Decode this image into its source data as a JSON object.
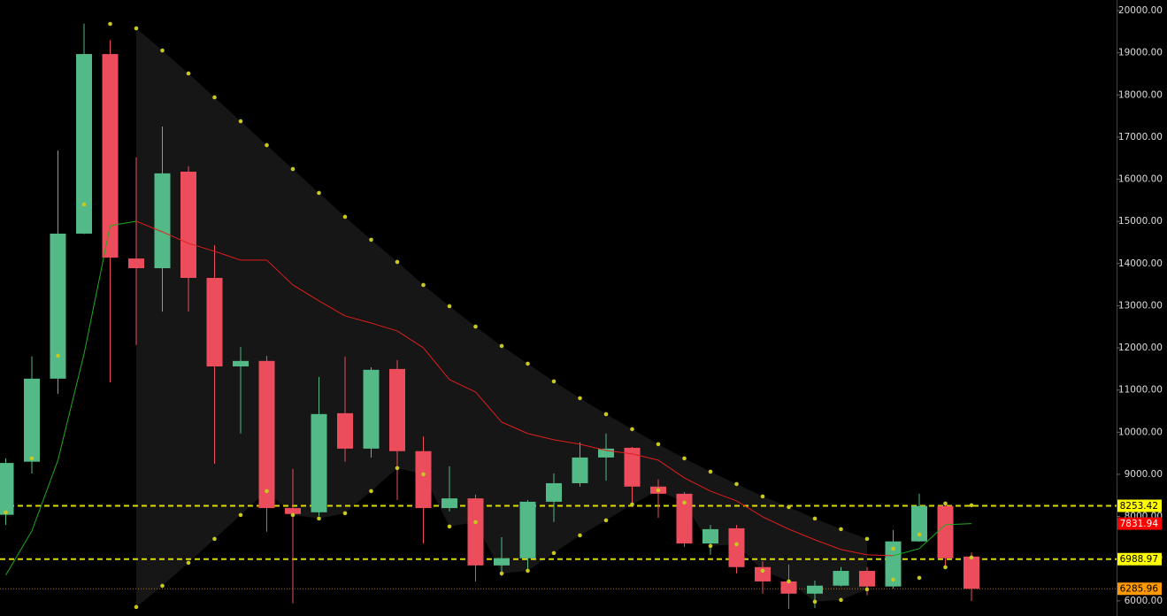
{
  "chart_data": {
    "type": "candlestick",
    "up_color": "#53b987",
    "down_color": "#eb4d5c",
    "open": [
      8040,
      9300,
      11270,
      14710,
      18970,
      14120,
      13890,
      16180,
      13660,
      11560,
      11690,
      8200,
      8100,
      10450,
      9610,
      11500,
      9550,
      8200,
      8430,
      6840,
      7010,
      8350,
      8790,
      9400,
      9630,
      8710,
      8540,
      7360,
      7720,
      6800,
      6460,
      6170,
      6360,
      6710,
      6340,
      7410,
      8250,
      7050
    ],
    "high": [
      9380,
      11800,
      16680,
      19690,
      19300,
      16520,
      17250,
      16310,
      14440,
      12020,
      11810,
      9130,
      11310,
      11790,
      11540,
      11710,
      9900,
      9190,
      8520,
      7510,
      8390,
      9020,
      9760,
      9970,
      9650,
      8880,
      8580,
      7800,
      7800,
      6940,
      6860,
      6480,
      6800,
      6800,
      7680,
      8540,
      8350,
      7150
    ],
    "low": [
      7800,
      9020,
      10910,
      14700,
      11180,
      12070,
      12860,
      12860,
      9250,
      9970,
      7640,
      5940,
      8010,
      9300,
      9400,
      8390,
      7360,
      8120,
      6460,
      6590,
      6690,
      7870,
      8710,
      8850,
      8220,
      7970,
      7280,
      7090,
      6650,
      6170,
      5810,
      5830,
      6340,
      6130,
      6290,
      7400,
      6820,
      6000
    ],
    "close": [
      9270,
      11270,
      14710,
      18970,
      14140,
      13890,
      16140,
      13660,
      11560,
      11690,
      8200,
      8060,
      10430,
      9610,
      11480,
      9550,
      8200,
      8430,
      6840,
      7010,
      8350,
      8790,
      9400,
      9610,
      8710,
      8540,
      7360,
      7700,
      6800,
      6460,
      6170,
      6360,
      6710,
      6340,
      7410,
      8250,
      7010,
      6285.96
    ],
    "overlays": [
      {
        "kind": "dots",
        "color": "#c8c81e",
        "values": [
          null,
          null,
          null,
          null,
          19685,
          19580,
          19055,
          18510,
          17943,
          17376,
          16810,
          16243,
          15676,
          15109,
          14564,
          14039,
          13493,
          12989,
          12506,
          12045,
          11625,
          11205,
          10806,
          10428,
          10072,
          9715,
          9379,
          9064,
          8770,
          8476,
          8224,
          7952,
          7700,
          7469,
          6503,
          6545,
          6797,
          7028
        ]
      },
      {
        "kind": "dots",
        "color": "#c8c81e",
        "values": [
          8098,
          9379,
          11814,
          15403,
          null,
          5853,
          6356,
          6902,
          7469,
          8036,
          8602,
          8036,
          7952,
          8078,
          8602,
          9148,
          9001,
          7763,
          7868,
          6650,
          6713,
          7133,
          7553,
          7910,
          8288,
          8624,
          8330,
          7301,
          7343,
          6713,
          6461,
          5979,
          6021,
          6272,
          7238,
          7574,
          8309,
          8267
        ]
      },
      {
        "kind": "line",
        "color": "#e01e1e",
        "up_color": "#1eaa1e",
        "values": [
          6608,
          7658,
          9337,
          11856,
          14899,
          15004,
          14752,
          14480,
          14291,
          14081,
          14081,
          13493,
          13115,
          12758,
          12590,
          12401,
          12002,
          11247,
          10953,
          10240,
          9967,
          9820,
          9715,
          9568,
          9484,
          9337,
          8917,
          8602,
          8371,
          7994,
          7700,
          7448,
          7217,
          7091,
          7070,
          7238,
          7805,
          7831.94
        ]
      }
    ],
    "price_levels": [
      {
        "value": 8253.42,
        "color": "#ffff00",
        "text_color": "#000000",
        "line": "dashed"
      },
      {
        "value": 7831.94,
        "color": "#ff0000",
        "text_color": "#ffffff",
        "line": "none"
      },
      {
        "value": 6988.97,
        "color": "#ffff00",
        "text_color": "#000000",
        "line": "dashed"
      },
      {
        "value": 6285.96,
        "color": "#ff9900",
        "text_color": "#000000",
        "line": "dotted"
      }
    ],
    "ylim": [
      5640,
      20000
    ],
    "yticks": [
      {
        "value": 6000,
        "label": "6000.00"
      },
      {
        "value": 7000,
        "label": "7000.00"
      },
      {
        "value": 8000,
        "label": "8000.00"
      },
      {
        "value": 9000,
        "label": "9000.00"
      },
      {
        "value": 10000,
        "label": "10000.00"
      },
      {
        "value": 11000,
        "label": "11000.00"
      },
      {
        "value": 12000,
        "label": "12000.00"
      },
      {
        "value": 13000,
        "label": "13000.00"
      },
      {
        "value": 14000,
        "label": "14000.00"
      },
      {
        "value": 15000,
        "label": "15000.00"
      },
      {
        "value": 16000,
        "label": "16000.00"
      },
      {
        "value": 17000,
        "label": "17000.00"
      },
      {
        "value": 18000,
        "label": "18000.00"
      },
      {
        "value": 19000,
        "label": "19000.00"
      },
      {
        "value": 20000,
        "label": "20000.00"
      }
    ]
  }
}
